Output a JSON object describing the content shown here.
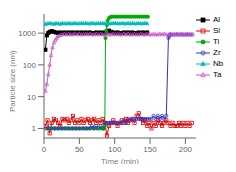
{
  "chart_data": {
    "type": "line",
    "xlabel": "Time (min)",
    "ylabel": "Particle size (nm)",
    "log": "y",
    "xlim": [
      0,
      215
    ],
    "xticks": [
      0,
      50,
      100,
      150,
      200
    ],
    "ylim": [
      0.5,
      4000
    ],
    "yticks": [
      1,
      10,
      100,
      1000
    ],
    "legend": "right",
    "series": [
      {
        "name": "Al",
        "color": "#000000",
        "marker": "filled-square",
        "x": [
          2,
          4,
          6,
          8,
          11,
          14,
          17,
          20,
          23,
          26,
          29,
          32,
          35,
          38,
          41,
          44,
          47,
          50,
          53,
          56,
          59,
          62,
          65,
          68,
          71,
          74,
          77,
          80,
          83,
          86,
          89,
          92,
          95,
          98,
          101,
          104,
          107,
          110,
          113,
          116,
          119,
          122,
          125,
          128,
          131,
          134,
          137,
          140,
          143,
          146
        ],
        "values": [
          300,
          850,
          1000,
          1100,
          1150,
          1100,
          1050,
          1000,
          1050,
          1000,
          1050,
          1000,
          1050,
          1000,
          1050,
          1000,
          1050,
          1000,
          1050,
          1000,
          1050,
          1000,
          1050,
          1000,
          1000,
          1050,
          1000,
          1050,
          1000,
          1050,
          1100,
          1200,
          1100,
          1050,
          1000,
          1050,
          1000,
          1000,
          1050,
          1000,
          1050,
          1000,
          1050,
          1000,
          1000,
          1050,
          1000,
          1050,
          1000,
          1050
        ]
      },
      {
        "name": "Si",
        "color": "#dd0000",
        "marker": "open-square",
        "x": [
          2,
          5,
          8,
          11,
          14,
          17,
          20,
          23,
          26,
          29,
          32,
          35,
          38,
          41,
          44,
          47,
          50,
          53,
          56,
          59,
          62,
          65,
          68,
          71,
          74,
          77,
          80,
          83,
          86,
          89,
          92,
          95,
          98,
          101,
          104,
          107,
          110,
          113,
          116,
          119,
          122,
          125,
          128,
          131,
          134,
          137,
          140,
          143,
          146,
          149,
          152,
          155,
          158,
          161,
          164,
          167,
          170,
          173,
          176,
          179,
          182,
          185,
          188,
          191,
          194,
          197,
          200,
          203,
          206,
          209
        ],
        "values": [
          1.2,
          1.8,
          0.7,
          1.5,
          2.0,
          1.8,
          1.5,
          1.2,
          2.0,
          1.8,
          2.0,
          1.5,
          1.8,
          2.5,
          1.5,
          1.8,
          1.5,
          2.0,
          1.5,
          1.8,
          2.0,
          1.5,
          1.8,
          2.0,
          1.5,
          1.8,
          1.5,
          2.0,
          1.5,
          0.6,
          1.2,
          1.5,
          1.8,
          1.5,
          1.2,
          1.5,
          1.8,
          1.5,
          2.0,
          1.5,
          1.8,
          2.0,
          1.5,
          2.5,
          3.0,
          2.0,
          1.5,
          1.8,
          1.2,
          1.5,
          1.0,
          1.5,
          1.2,
          1.8,
          1.5,
          1.2,
          1.5,
          1.8,
          1.5,
          1.2,
          1.5,
          1.2,
          1.2,
          1.5,
          1.2,
          1.5,
          1.2,
          1.5,
          1.2,
          1.5
        ]
      },
      {
        "name": "Ti",
        "color": "#00aa00",
        "marker": "filled-circle",
        "x": [
          5,
          10,
          15,
          20,
          25,
          30,
          35,
          40,
          45,
          50,
          55,
          60,
          65,
          70,
          75,
          80,
          84,
          85,
          86,
          87,
          88,
          89,
          90,
          92,
          94,
          96,
          99,
          102,
          105,
          108,
          111,
          114,
          117,
          120,
          123,
          126,
          129,
          132,
          135,
          138,
          141,
          144,
          147
        ],
        "values": [
          1.0,
          1.0,
          1.0,
          1.0,
          1.0,
          1.0,
          1.0,
          1.0,
          1.0,
          1.0,
          1.0,
          1.0,
          1.0,
          1.0,
          1.0,
          1.0,
          1.0,
          1.0,
          1.2,
          700,
          1200,
          1800,
          2500,
          3000,
          3200,
          3300,
          3300,
          3300,
          3300,
          3300,
          3300,
          3300,
          3300,
          3300,
          3300,
          3300,
          3300,
          3300,
          3300,
          3300,
          3300,
          3300,
          3300
        ]
      },
      {
        "name": "Zr",
        "color": "#3333bb",
        "marker": "open-circle",
        "x": [
          2,
          5,
          8,
          11,
          14,
          17,
          20,
          23,
          26,
          29,
          32,
          35,
          38,
          41,
          44,
          47,
          50,
          53,
          56,
          59,
          62,
          65,
          68,
          71,
          74,
          77,
          80,
          83,
          86,
          89,
          92,
          95,
          98,
          101,
          104,
          107,
          110,
          113,
          116,
          119,
          122,
          125,
          128,
          131,
          134,
          137,
          140,
          143,
          146,
          149,
          152,
          155,
          158,
          161,
          164,
          167,
          170,
          173,
          176,
          177,
          178,
          180,
          183,
          186,
          189,
          192,
          195,
          198,
          201,
          204,
          207,
          210
        ],
        "values": [
          1.0,
          1.0,
          1.0,
          1.0,
          1.0,
          1.0,
          1.0,
          1.0,
          1.0,
          1.0,
          1.0,
          1.0,
          1.0,
          1.0,
          1.0,
          1.0,
          1.0,
          1.0,
          1.0,
          1.0,
          1.0,
          1.0,
          1.2,
          1.0,
          1.2,
          1.0,
          1.2,
          1.0,
          1.5,
          1.5,
          1.5,
          1.5,
          1.5,
          1.5,
          1.5,
          1.5,
          1.5,
          1.8,
          1.5,
          2.0,
          1.8,
          2.0,
          1.8,
          2.0,
          2.0,
          2.0,
          2.0,
          2.0,
          2.0,
          2.0,
          2.0,
          2.5,
          2.0,
          2.5,
          2.0,
          2.5,
          2.0,
          2.5,
          700,
          800,
          900,
          900,
          900,
          900,
          900,
          900,
          900,
          900,
          900,
          900,
          900,
          900
        ]
      },
      {
        "name": "Nb",
        "color": "#00bbbb",
        "marker": "filled-triangle",
        "x": [
          2,
          5,
          8,
          11,
          14,
          17,
          20,
          23,
          26,
          29,
          32,
          35,
          38,
          41,
          44,
          47,
          50,
          53,
          56,
          59,
          62,
          65,
          68,
          71,
          74,
          77,
          80,
          83,
          86,
          89,
          92,
          95,
          98,
          101,
          104,
          107,
          110,
          113,
          116,
          119,
          122,
          125,
          128,
          131,
          134,
          137,
          140,
          143,
          146
        ],
        "values": [
          1900,
          2000,
          2050,
          2000,
          1950,
          2050,
          2000,
          1950,
          2050,
          2000,
          2000,
          2050,
          2000,
          2000,
          2050,
          2000,
          2000,
          2050,
          2000,
          2050,
          2000,
          2000,
          2050,
          2000,
          2000,
          2050,
          2000,
          2050,
          2000,
          2050,
          2000,
          2000,
          2050,
          2050,
          2000,
          2000,
          2050,
          2000,
          2000,
          2050,
          2000,
          2050,
          2000,
          2000,
          2050,
          2000,
          2000,
          2050,
          2000
        ]
      },
      {
        "name": "Ta",
        "color": "#cc55cc",
        "marker": "open-triangle",
        "x": [
          2,
          4,
          6,
          8,
          10,
          12,
          14,
          16,
          18,
          20,
          23,
          26,
          29,
          32,
          35,
          38,
          41,
          44,
          47,
          50,
          53,
          56,
          59,
          62,
          65,
          68,
          71,
          74,
          77,
          80,
          83,
          86,
          89,
          92,
          95,
          98,
          101,
          104,
          107,
          110,
          113,
          116,
          119,
          122,
          125,
          128,
          131,
          134,
          137,
          140,
          143,
          146,
          149,
          152,
          155,
          158,
          161,
          164,
          167,
          170,
          173,
          176,
          179,
          182,
          185,
          188,
          191,
          194,
          197,
          200,
          203,
          206,
          209
        ],
        "values": [
          15,
          25,
          50,
          100,
          200,
          350,
          500,
          600,
          700,
          800,
          850,
          900,
          950,
          900,
          950,
          900,
          900,
          950,
          900,
          950,
          900,
          900,
          950,
          900,
          950,
          900,
          900,
          950,
          900,
          950,
          900,
          900,
          950,
          900,
          900,
          950,
          900,
          950,
          900,
          900,
          950,
          900,
          950,
          900,
          900,
          950,
          900,
          900,
          950,
          900,
          900,
          950,
          900,
          900,
          950,
          900,
          900,
          950,
          900,
          950,
          900,
          900,
          950,
          900,
          900,
          950,
          900,
          950,
          900,
          900,
          950,
          900,
          900
        ]
      }
    ]
  }
}
